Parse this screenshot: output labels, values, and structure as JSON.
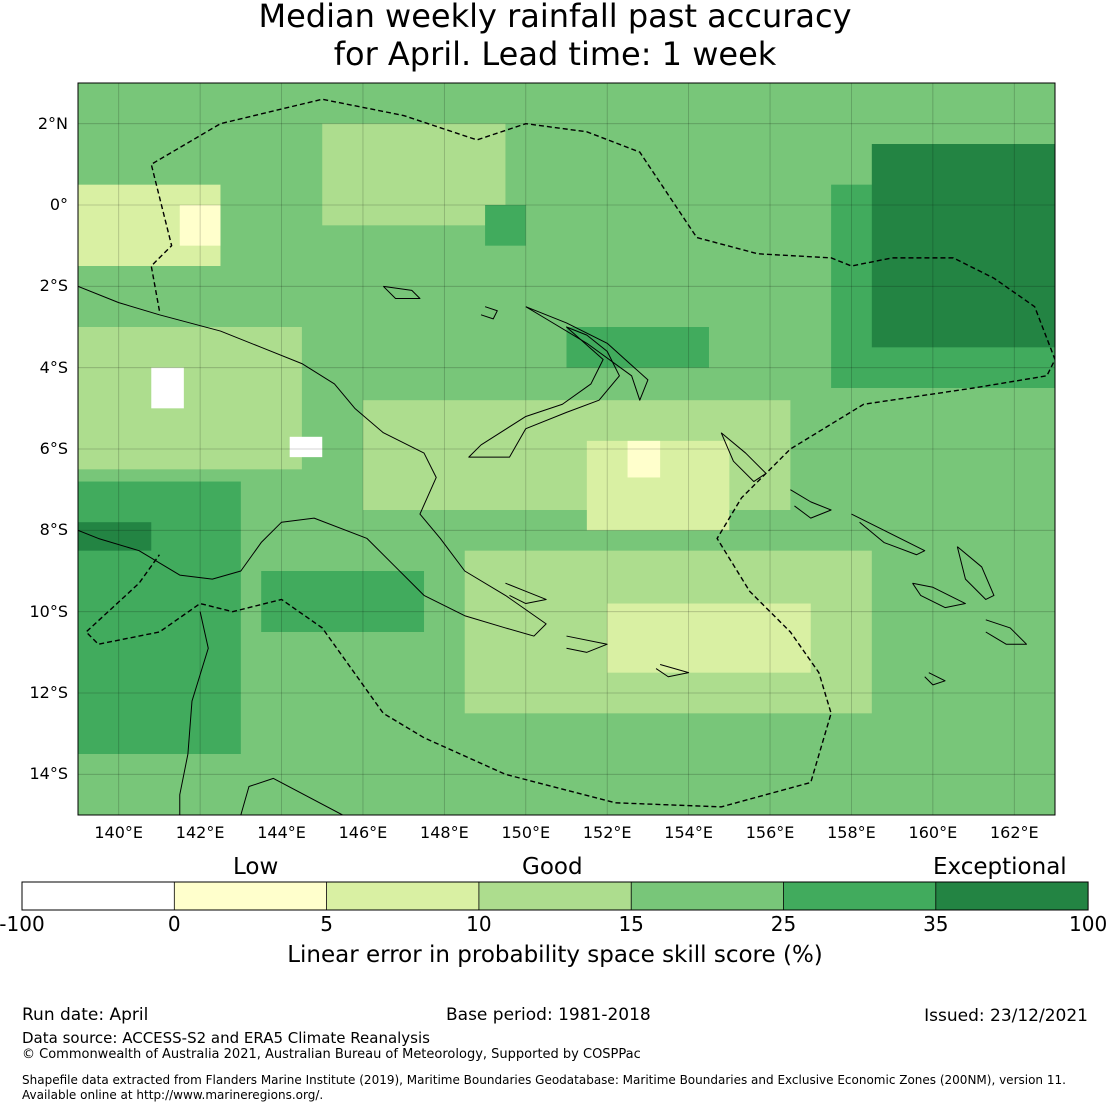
{
  "title": {
    "line1": "Median weekly rainfall past accuracy",
    "line2": "for April. Lead time: 1 week"
  },
  "map": {
    "extent": {
      "lon_min": 139.0,
      "lon_max": 163.0,
      "lat_min": -15.0,
      "lat_max": 3.0
    },
    "lat_ticks": [
      {
        "value": 2,
        "label": "2°N"
      },
      {
        "value": 0,
        "label": "0°"
      },
      {
        "value": -2,
        "label": "2°S"
      },
      {
        "value": -4,
        "label": "4°S"
      },
      {
        "value": -6,
        "label": "6°S"
      },
      {
        "value": -8,
        "label": "8°S"
      },
      {
        "value": -10,
        "label": "10°S"
      },
      {
        "value": -12,
        "label": "12°S"
      },
      {
        "value": -14,
        "label": "14°S"
      }
    ],
    "lon_ticks": [
      {
        "value": 140,
        "label": "140°E"
      },
      {
        "value": 142,
        "label": "142°E"
      },
      {
        "value": 144,
        "label": "144°E"
      },
      {
        "value": 146,
        "label": "146°E"
      },
      {
        "value": 148,
        "label": "148°E"
      },
      {
        "value": 150,
        "label": "150°E"
      },
      {
        "value": 152,
        "label": "152°E"
      },
      {
        "value": 154,
        "label": "154°E"
      },
      {
        "value": 156,
        "label": "156°E"
      },
      {
        "value": 158,
        "label": "158°E"
      },
      {
        "value": 160,
        "label": "160°E"
      },
      {
        "value": 162,
        "label": "162°E"
      }
    ],
    "zones": [
      {
        "from": 0,
        "to": 5,
        "level": 1,
        "lon": [
          139.0,
          163.0
        ],
        "lat": [
          -15.0,
          3.0
        ]
      },
      {
        "from": 15,
        "to": 25,
        "level": 4,
        "lon": [
          139.0,
          163.0
        ],
        "lat": [
          -15.0,
          3.0
        ]
      },
      {
        "from": 10,
        "to": 15,
        "level": 3,
        "lon": [
          145.0,
          149.5
        ],
        "lat": [
          -0.5,
          2.0
        ]
      },
      {
        "from": 10,
        "to": 15,
        "level": 3,
        "lon": [
          139.0,
          144.5
        ],
        "lat": [
          -6.5,
          -3.0
        ]
      },
      {
        "from": 10,
        "to": 15,
        "level": 3,
        "lon": [
          146.0,
          156.5
        ],
        "lat": [
          -7.5,
          -4.8
        ]
      },
      {
        "from": 10,
        "to": 15,
        "level": 3,
        "lon": [
          148.5,
          158.5
        ],
        "lat": [
          -12.5,
          -8.5
        ]
      },
      {
        "from": 5,
        "to": 10,
        "level": 2,
        "lon": [
          139.0,
          142.5
        ],
        "lat": [
          -1.5,
          0.5
        ]
      },
      {
        "from": 5,
        "to": 10,
        "level": 2,
        "lon": [
          151.5,
          155.0
        ],
        "lat": [
          -8.0,
          -5.8
        ]
      },
      {
        "from": 5,
        "to": 10,
        "level": 2,
        "lon": [
          152.0,
          157.0
        ],
        "lat": [
          -11.5,
          -9.8
        ]
      },
      {
        "from": 25,
        "to": 35,
        "level": 5,
        "lon": [
          157.5,
          163.0
        ],
        "lat": [
          -4.5,
          0.5
        ]
      },
      {
        "from": 35,
        "to": 100,
        "level": 6,
        "lon": [
          158.5,
          163.0
        ],
        "lat": [
          -3.5,
          1.5
        ]
      },
      {
        "from": 25,
        "to": 35,
        "level": 5,
        "lon": [
          139.0,
          143.0
        ],
        "lat": [
          -13.5,
          -6.8
        ]
      },
      {
        "from": 25,
        "to": 35,
        "level": 5,
        "lon": [
          143.5,
          147.5
        ],
        "lat": [
          -10.5,
          -9.0
        ]
      },
      {
        "from": 25,
        "to": 35,
        "level": 5,
        "lon": [
          151.0,
          154.5
        ],
        "lat": [
          -4.0,
          -3.0
        ]
      },
      {
        "from": 35,
        "to": 100,
        "level": 6,
        "lon": [
          139.0,
          140.8
        ],
        "lat": [
          -8.5,
          -7.8
        ]
      },
      {
        "from": 25,
        "to": 35,
        "level": 5,
        "lon": [
          149.0,
          150.0
        ],
        "lat": [
          -1.0,
          0.0
        ]
      },
      {
        "from": 0,
        "to": 5,
        "level": 1,
        "lon": [
          152.5,
          153.3
        ],
        "lat": [
          -6.7,
          -5.8
        ]
      },
      {
        "from": 0,
        "to": 5,
        "level": 1,
        "lon": [
          141.5,
          142.5
        ],
        "lat": [
          -1.0,
          0.0
        ]
      },
      {
        "from": -100,
        "to": 0,
        "level": 0,
        "lon": [
          140.8,
          141.6
        ],
        "lat": [
          -5.0,
          -4.0
        ]
      },
      {
        "from": -100,
        "to": 0,
        "level": 0,
        "lon": [
          144.2,
          145.0
        ],
        "lat": [
          -6.2,
          -5.7
        ]
      }
    ],
    "eez_boundary": [
      [
        141.0,
        -2.6
      ],
      [
        140.8,
        -1.5
      ],
      [
        141.3,
        -1.0
      ],
      [
        140.8,
        1.0
      ],
      [
        142.5,
        2.0
      ],
      [
        145.0,
        2.6
      ],
      [
        147.0,
        2.2
      ],
      [
        148.8,
        1.6
      ],
      [
        150.0,
        2.0
      ],
      [
        151.5,
        1.8
      ],
      [
        152.8,
        1.3
      ],
      [
        154.2,
        -0.8
      ],
      [
        155.7,
        -1.2
      ],
      [
        157.5,
        -1.3
      ],
      [
        158.0,
        -1.5
      ],
      [
        159.0,
        -1.3
      ],
      [
        160.5,
        -1.3
      ],
      [
        161.5,
        -1.8
      ],
      [
        162.5,
        -2.5
      ],
      [
        163.0,
        -3.8
      ],
      [
        162.8,
        -4.2
      ],
      [
        161.0,
        -4.5
      ],
      [
        158.3,
        -4.9
      ],
      [
        156.5,
        -6.0
      ],
      [
        155.3,
        -7.2
      ],
      [
        154.7,
        -8.2
      ],
      [
        155.5,
        -9.5
      ],
      [
        156.5,
        -10.5
      ],
      [
        157.2,
        -11.5
      ],
      [
        157.5,
        -12.5
      ],
      [
        157.0,
        -14.2
      ],
      [
        154.8,
        -14.8
      ],
      [
        152.2,
        -14.7
      ],
      [
        149.5,
        -14.0
      ],
      [
        147.5,
        -13.1
      ],
      [
        146.5,
        -12.5
      ],
      [
        145.0,
        -10.4
      ],
      [
        144.0,
        -9.7
      ],
      [
        142.8,
        -10.0
      ],
      [
        142.0,
        -9.8
      ],
      [
        141.0,
        -10.5
      ],
      [
        139.5,
        -10.8
      ],
      [
        139.2,
        -10.5
      ],
      [
        140.5,
        -9.3
      ],
      [
        141.0,
        -8.6
      ]
    ],
    "coastlines": [
      [
        [
          139.0,
          -2.0
        ],
        [
          140.0,
          -2.4
        ],
        [
          141.0,
          -2.7
        ],
        [
          142.5,
          -3.1
        ],
        [
          143.5,
          -3.5
        ],
        [
          144.5,
          -3.9
        ],
        [
          145.3,
          -4.4
        ],
        [
          145.8,
          -5.0
        ],
        [
          146.5,
          -5.6
        ],
        [
          147.5,
          -6.1
        ],
        [
          147.8,
          -6.7
        ],
        [
          147.4,
          -7.6
        ],
        [
          147.9,
          -8.2
        ],
        [
          148.5,
          -9.0
        ],
        [
          149.5,
          -9.6
        ],
        [
          150.5,
          -10.3
        ],
        [
          150.2,
          -10.6
        ],
        [
          149.5,
          -10.4
        ],
        [
          148.5,
          -10.1
        ],
        [
          147.5,
          -9.6
        ],
        [
          146.8,
          -8.9
        ],
        [
          146.1,
          -8.2
        ],
        [
          144.8,
          -7.7
        ],
        [
          144.0,
          -7.8
        ],
        [
          143.5,
          -8.3
        ],
        [
          143.0,
          -9.0
        ],
        [
          142.3,
          -9.2
        ],
        [
          141.5,
          -9.1
        ],
        [
          140.5,
          -8.5
        ],
        [
          139.5,
          -8.2
        ],
        [
          139.0,
          -8.0
        ]
      ],
      [
        [
          150.0,
          -5.5
        ],
        [
          151.0,
          -5.1
        ],
        [
          151.8,
          -4.8
        ],
        [
          152.3,
          -4.2
        ],
        [
          152.0,
          -3.6
        ],
        [
          151.5,
          -3.2
        ],
        [
          151.0,
          -3.0
        ],
        [
          151.9,
          -3.8
        ],
        [
          151.6,
          -4.4
        ],
        [
          150.9,
          -4.9
        ],
        [
          150.0,
          -5.2
        ],
        [
          148.9,
          -5.9
        ],
        [
          148.6,
          -6.2
        ],
        [
          149.6,
          -6.2
        ],
        [
          150.0,
          -5.5
        ]
      ],
      [
        [
          150.0,
          -2.5
        ],
        [
          151.0,
          -2.9
        ],
        [
          152.0,
          -3.4
        ],
        [
          153.0,
          -4.3
        ],
        [
          152.8,
          -4.8
        ],
        [
          152.6,
          -4.2
        ],
        [
          151.5,
          -3.4
        ],
        [
          150.5,
          -2.8
        ],
        [
          150.0,
          -2.5
        ]
      ],
      [
        [
          142.0,
          -10.0
        ],
        [
          142.2,
          -10.9
        ],
        [
          141.8,
          -12.2
        ],
        [
          141.7,
          -13.5
        ],
        [
          141.5,
          -14.5
        ],
        [
          141.5,
          -15.0
        ]
      ],
      [
        [
          143.0,
          -15.0
        ],
        [
          143.2,
          -14.3
        ],
        [
          143.8,
          -14.1
        ],
        [
          145.5,
          -15.0
        ]
      ],
      [
        [
          154.8,
          -5.6
        ],
        [
          155.4,
          -6.1
        ],
        [
          155.9,
          -6.6
        ],
        [
          155.6,
          -6.8
        ],
        [
          155.1,
          -6.3
        ],
        [
          154.8,
          -5.6
        ]
      ],
      [
        [
          156.5,
          -7.0
        ],
        [
          157.0,
          -7.3
        ],
        [
          157.5,
          -7.5
        ],
        [
          157.0,
          -7.7
        ],
        [
          156.6,
          -7.4
        ]
      ],
      [
        [
          158.0,
          -7.6
        ],
        [
          158.8,
          -8.0
        ],
        [
          159.8,
          -8.5
        ],
        [
          159.6,
          -8.6
        ],
        [
          158.8,
          -8.3
        ],
        [
          158.2,
          -7.8
        ]
      ],
      [
        [
          159.5,
          -9.3
        ],
        [
          160.0,
          -9.4
        ],
        [
          160.8,
          -9.8
        ],
        [
          160.3,
          -9.9
        ],
        [
          159.7,
          -9.6
        ],
        [
          159.5,
          -9.3
        ]
      ],
      [
        [
          160.6,
          -8.4
        ],
        [
          161.2,
          -8.9
        ],
        [
          161.5,
          -9.6
        ],
        [
          161.3,
          -9.7
        ],
        [
          160.8,
          -9.2
        ],
        [
          160.6,
          -8.4
        ]
      ],
      [
        [
          161.3,
          -10.2
        ],
        [
          161.9,
          -10.4
        ],
        [
          162.3,
          -10.8
        ],
        [
          161.8,
          -10.8
        ],
        [
          161.3,
          -10.5
        ]
      ],
      [
        [
          149.5,
          -9.3
        ],
        [
          150.0,
          -9.5
        ],
        [
          150.5,
          -9.7
        ],
        [
          150.0,
          -9.8
        ],
        [
          149.6,
          -9.6
        ]
      ],
      [
        [
          151.0,
          -10.6
        ],
        [
          152.0,
          -10.8
        ],
        [
          151.5,
          -11.0
        ],
        [
          151.0,
          -10.9
        ]
      ],
      [
        [
          153.3,
          -11.3
        ],
        [
          154.0,
          -11.5
        ],
        [
          153.5,
          -11.6
        ],
        [
          153.2,
          -11.4
        ]
      ],
      [
        [
          149.0,
          -2.5
        ],
        [
          149.3,
          -2.6
        ],
        [
          149.2,
          -2.8
        ],
        [
          148.9,
          -2.7
        ]
      ],
      [
        [
          146.5,
          -2.0
        ],
        [
          147.2,
          -2.1
        ],
        [
          147.4,
          -2.3
        ],
        [
          146.8,
          -2.3
        ],
        [
          146.5,
          -2.0
        ]
      ],
      [
        [
          159.9,
          -11.5
        ],
        [
          160.3,
          -11.7
        ],
        [
          160.0,
          -11.8
        ],
        [
          159.8,
          -11.6
        ]
      ]
    ]
  },
  "colorbar": {
    "categories": [
      {
        "from": -100,
        "to": 0,
        "color": "#ffffff"
      },
      {
        "from": 0,
        "to": 5,
        "color": "#ffffcc"
      },
      {
        "from": 5,
        "to": 10,
        "color": "#d9f0a3"
      },
      {
        "from": 10,
        "to": 15,
        "color": "#addd8e"
      },
      {
        "from": 15,
        "to": 25,
        "color": "#78c679"
      },
      {
        "from": 25,
        "to": 35,
        "color": "#41ab5d"
      },
      {
        "from": 35,
        "to": 100,
        "color": "#238443"
      }
    ],
    "tick_labels": [
      "-100",
      "0",
      "5",
      "10",
      "15",
      "25",
      "35",
      "100"
    ],
    "words": {
      "low": "Low",
      "good": "Good",
      "exceptional": "Exceptional"
    },
    "label": "Linear error in probability space skill score (%)"
  },
  "footer": {
    "run_date": "Run date: April",
    "base_period": "Base period: 1981-2018",
    "issued": "Issued: 23/12/2021",
    "data_source": "Data source: ACCESS-S2 and ERA5 Climate Reanalysis",
    "copyright": "© Commonwealth of Australia 2021, Australian Bureau of Meteorology, Supported by COSPPac",
    "shapefile_line1": "Shapefile data extracted from Flanders Marine Institute (2019), Maritime Boundaries Geodatabase: Maritime Boundaries and Exclusive Economic Zones (200NM), version 11.",
    "shapefile_line2": "Available online at http://www.marineregions.org/."
  }
}
